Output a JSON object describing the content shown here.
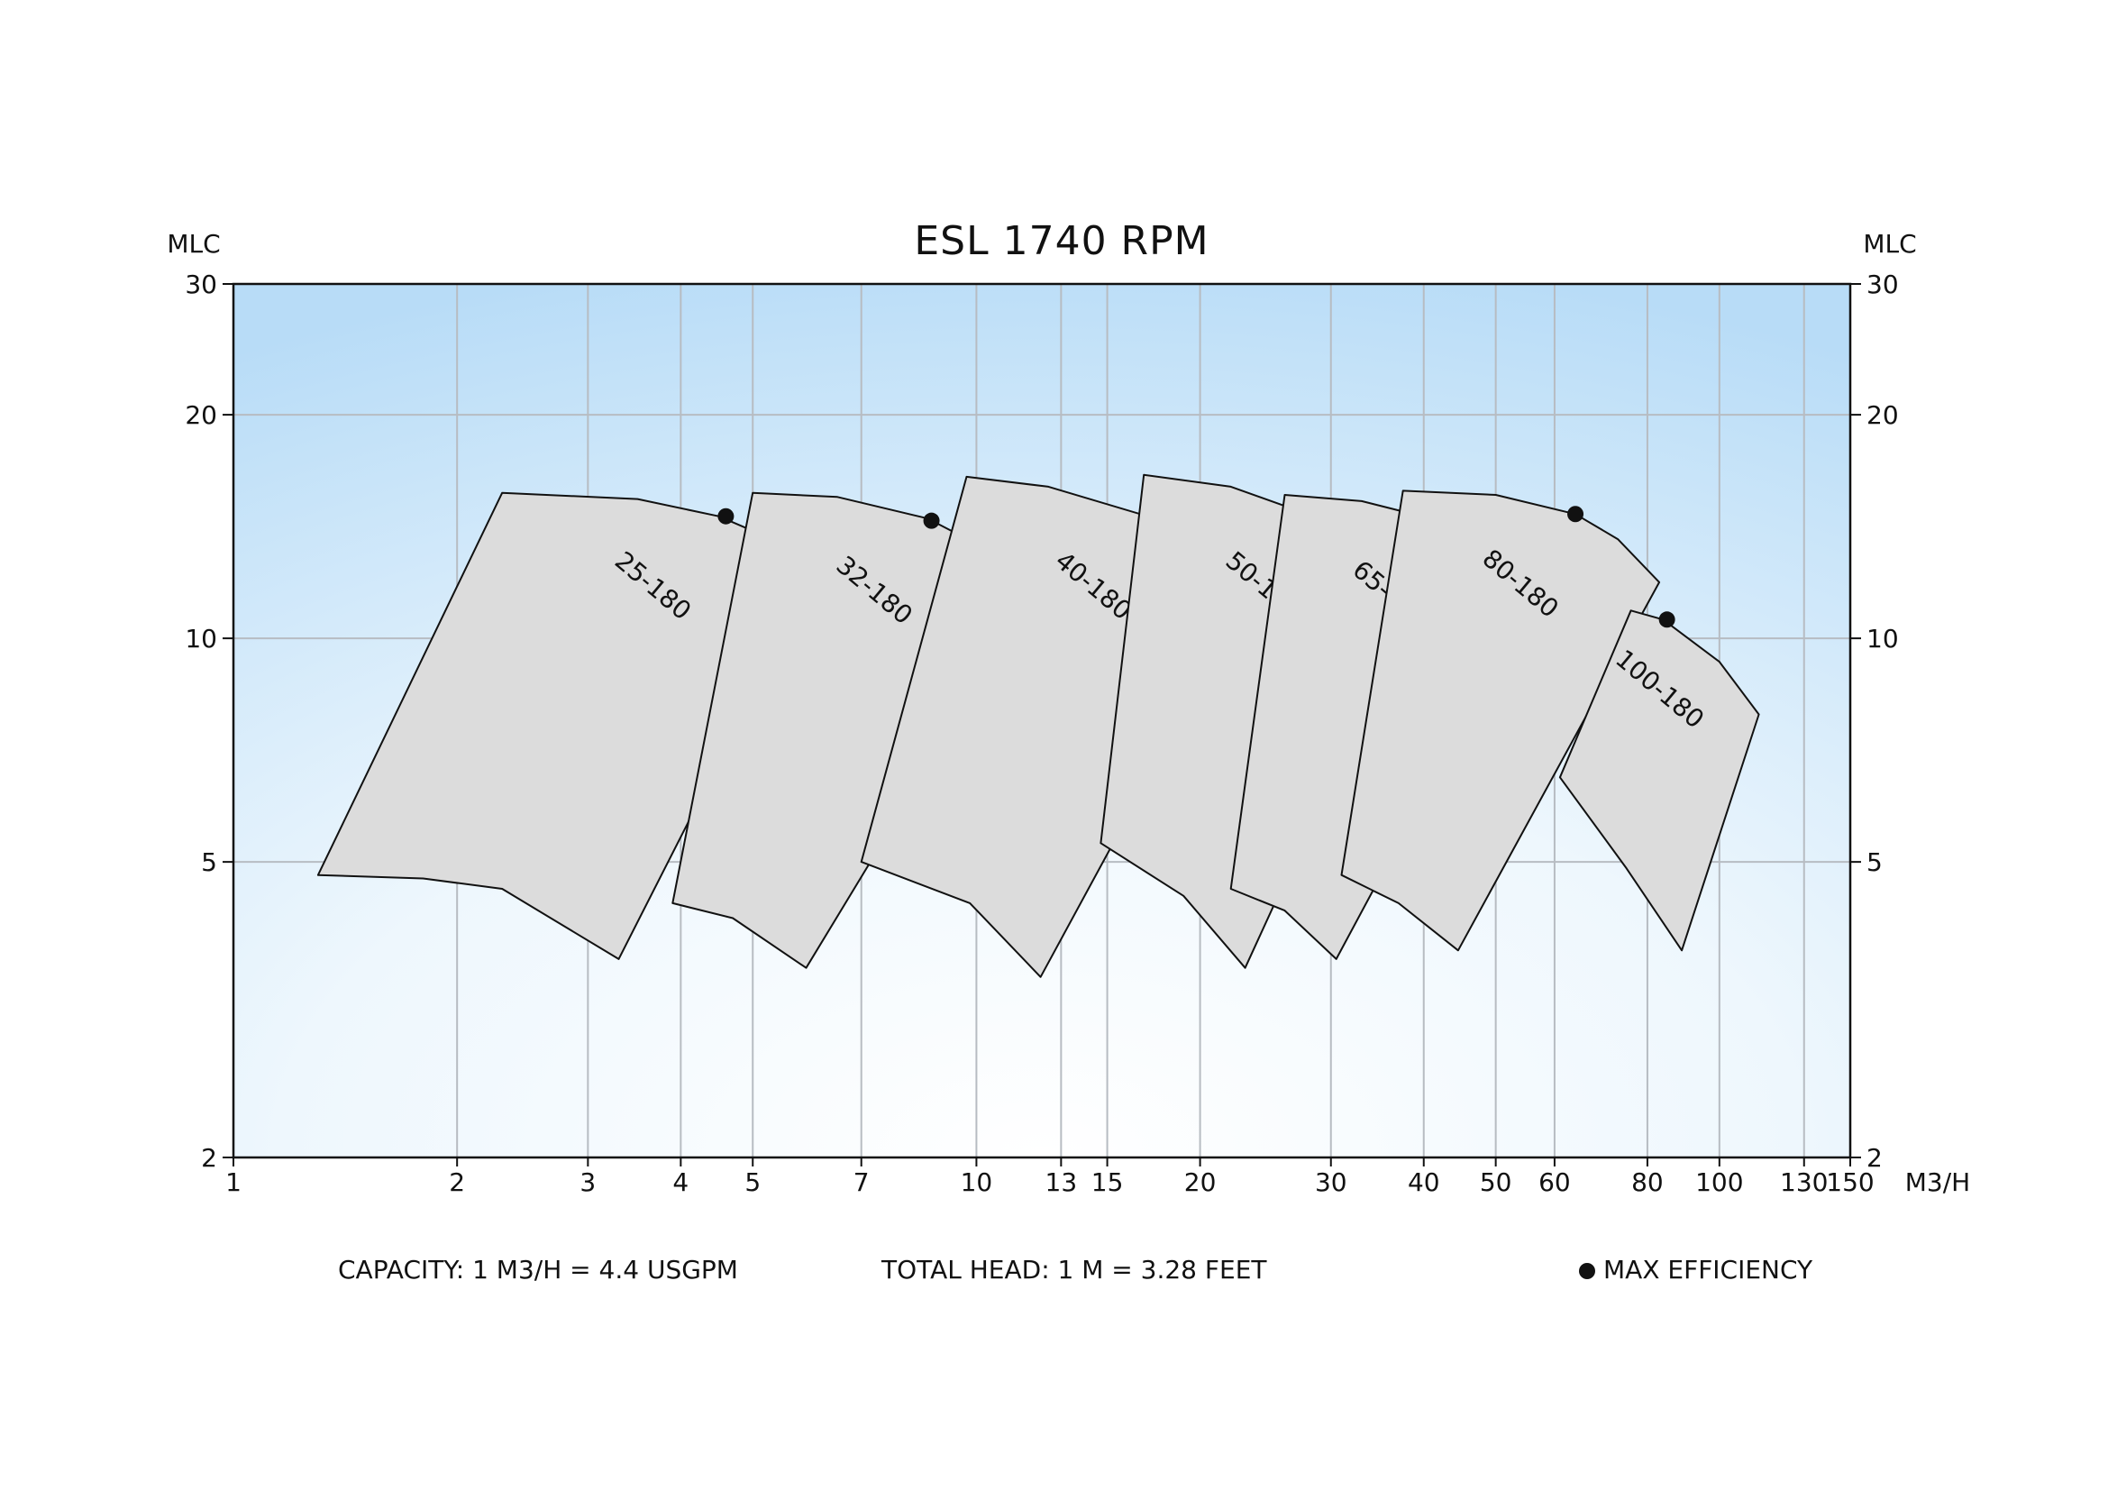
{
  "chart_data": {
    "type": "area",
    "title": "ESL 1740 RPM",
    "ylabel_left": "MLC",
    "ylabel_right": "MLC",
    "xlabel": "M3/H",
    "x_scale": "log",
    "y_scale": "log",
    "xlim": [
      1,
      150
    ],
    "ylim": [
      2,
      30
    ],
    "x_ticks": [
      1,
      2,
      3,
      4,
      5,
      7,
      10,
      13,
      15,
      20,
      30,
      40,
      50,
      60,
      80,
      100,
      130,
      150
    ],
    "y_ticks": [
      2,
      5,
      10,
      20,
      30
    ],
    "grid": true,
    "series": [
      {
        "name": "25-180",
        "polygon": [
          [
            2.3,
            15.7
          ],
          [
            3.5,
            15.4
          ],
          [
            4.5,
            14.6
          ],
          [
            5.4,
            13.5
          ],
          [
            6.0,
            12.0
          ],
          [
            3.3,
            3.7
          ],
          [
            2.3,
            4.6
          ],
          [
            1.8,
            4.75
          ],
          [
            1.3,
            4.8
          ]
        ],
        "max_efficiency": [
          4.6,
          14.6
        ]
      },
      {
        "name": "32-180",
        "polygon": [
          [
            5.0,
            15.7
          ],
          [
            6.5,
            15.5
          ],
          [
            8.6,
            14.5
          ],
          [
            10.3,
            13.2
          ],
          [
            11.8,
            11.3
          ],
          [
            5.9,
            3.6
          ],
          [
            4.7,
            4.2
          ],
          [
            3.9,
            4.4
          ]
        ],
        "max_efficiency": [
          8.7,
          14.4
        ]
      },
      {
        "name": "40-180",
        "polygon": [
          [
            9.7,
            16.5
          ],
          [
            12.5,
            16.0
          ],
          [
            17.0,
            14.6
          ],
          [
            20.3,
            13.4
          ],
          [
            23.8,
            12.0
          ],
          [
            12.2,
            3.5
          ],
          [
            9.8,
            4.4
          ],
          [
            7.0,
            5.0
          ]
        ],
        "max_efficiency": [
          17.3,
          14.6
        ]
      },
      {
        "name": "50-180",
        "polygon": [
          [
            16.8,
            16.6
          ],
          [
            22.0,
            16.0
          ],
          [
            29.0,
            14.5
          ],
          [
            34.0,
            13.2
          ],
          [
            39.0,
            11.4
          ],
          [
            23.0,
            3.6
          ],
          [
            19.0,
            4.5
          ],
          [
            14.7,
            5.3
          ]
        ],
        "max_efficiency": [
          29.0,
          14.6
        ]
      },
      {
        "name": "65-180",
        "polygon": [
          [
            26.0,
            15.6
          ],
          [
            33.0,
            15.3
          ],
          [
            42.0,
            14.4
          ],
          [
            49.0,
            13.0
          ],
          [
            56.0,
            11.5
          ],
          [
            30.5,
            3.7
          ],
          [
            26.0,
            4.3
          ],
          [
            22.0,
            4.6
          ]
        ],
        "max_efficiency": [
          42.0,
          14.2
        ]
      },
      {
        "name": "80-180",
        "polygon": [
          [
            37.5,
            15.8
          ],
          [
            50.0,
            15.6
          ],
          [
            64.0,
            14.7
          ],
          [
            73.0,
            13.6
          ],
          [
            83.0,
            11.9
          ],
          [
            44.5,
            3.8
          ],
          [
            37.0,
            4.4
          ],
          [
            31.0,
            4.8
          ]
        ],
        "max_efficiency": [
          64.0,
          14.7
        ]
      },
      {
        "name": "100-180",
        "polygon": [
          [
            76.0,
            10.9
          ],
          [
            84.0,
            10.6
          ],
          [
            100.0,
            9.3
          ],
          [
            113.0,
            7.9
          ],
          [
            89.0,
            3.8
          ],
          [
            75.0,
            4.9
          ],
          [
            61.0,
            6.5
          ]
        ],
        "max_efficiency": [
          85.0,
          10.6
        ]
      }
    ],
    "legend": {
      "marker": "max-efficiency-dot",
      "label": "MAX EFFICIENCY",
      "placement": "bottom-right"
    }
  },
  "footer": {
    "capacity": "CAPACITY: 1 M3/H = 4.4 USGPM",
    "total_head": "TOTAL HEAD: 1 M = 3.28 FEET"
  },
  "colors": {
    "background_edge": "#b8dcf7",
    "background_center": "#ffffff",
    "region_fill": "#dcdcdc",
    "grid": "#b7bcc2",
    "text": "#111111"
  }
}
